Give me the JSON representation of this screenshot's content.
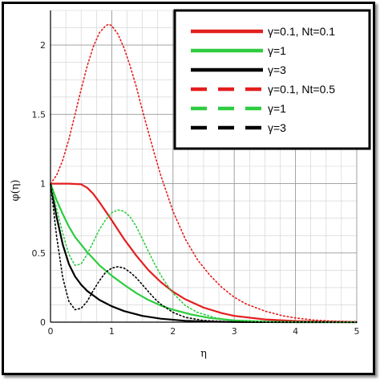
{
  "chart_data": {
    "type": "line",
    "xlabel": "η",
    "ylabel": "φ(η)",
    "xlim": [
      0,
      5
    ],
    "ylim": [
      0,
      2.25
    ],
    "x_ticks": [
      "0",
      "1",
      "2",
      "3",
      "4",
      "5"
    ],
    "y_ticks": [
      "0",
      "0.5",
      "1",
      "1.5",
      "2"
    ],
    "minor_grid": true,
    "grid": true,
    "legend_position": "top-right",
    "series": [
      {
        "name": "γ=0.1, Nt=0.1",
        "color": "#e41e1e",
        "style": "solid",
        "x": [
          0,
          0.3,
          0.5,
          0.6,
          0.7,
          0.8,
          0.9,
          1.0,
          1.2,
          1.4,
          1.6,
          1.8,
          2.0,
          2.2,
          2.5,
          2.8,
          3.0,
          3.5,
          4.0,
          4.5,
          5.0
        ],
        "y": [
          1.0,
          1.0,
          0.995,
          0.97,
          0.925,
          0.865,
          0.8,
          0.735,
          0.6,
          0.48,
          0.375,
          0.29,
          0.22,
          0.165,
          0.105,
          0.065,
          0.045,
          0.02,
          0.008,
          0.003,
          0.001
        ]
      },
      {
        "name": "γ=1",
        "color": "#2ecc40",
        "style": "solid",
        "x": [
          0,
          0.1,
          0.2,
          0.3,
          0.4,
          0.6,
          0.8,
          1.0,
          1.2,
          1.4,
          1.6,
          1.8,
          2.0,
          2.3,
          2.6,
          3.0,
          3.5,
          4.0,
          5.0
        ],
        "y": [
          1.0,
          0.88,
          0.78,
          0.69,
          0.615,
          0.505,
          0.41,
          0.335,
          0.27,
          0.21,
          0.16,
          0.12,
          0.09,
          0.055,
          0.03,
          0.012,
          0.004,
          0.001,
          0.0
        ]
      },
      {
        "name": "γ=3",
        "color": "#000000",
        "style": "solid",
        "x": [
          0,
          0.1,
          0.2,
          0.3,
          0.4,
          0.5,
          0.6,
          0.8,
          1.0,
          1.2,
          1.5,
          1.8,
          2.2,
          2.6,
          3.0,
          4.0,
          5.0
        ],
        "y": [
          1.0,
          0.76,
          0.56,
          0.42,
          0.33,
          0.27,
          0.225,
          0.16,
          0.115,
          0.08,
          0.045,
          0.025,
          0.01,
          0.004,
          0.001,
          0.0,
          0.0
        ]
      },
      {
        "name": "γ=0.1, Nt=0.5",
        "color": "#e41e1e",
        "style": "dashed",
        "x": [
          0,
          0.1,
          0.2,
          0.3,
          0.4,
          0.5,
          0.6,
          0.7,
          0.8,
          0.9,
          0.95,
          1.0,
          1.1,
          1.2,
          1.3,
          1.4,
          1.5,
          1.6,
          1.7,
          1.8,
          2.0,
          2.2,
          2.4,
          2.6,
          2.8,
          3.0,
          3.2,
          3.5,
          3.8,
          4.0,
          4.3,
          4.6,
          5.0
        ],
        "y": [
          1.0,
          1.06,
          1.17,
          1.32,
          1.5,
          1.68,
          1.85,
          1.99,
          2.09,
          2.14,
          2.15,
          2.14,
          2.08,
          1.98,
          1.85,
          1.7,
          1.53,
          1.37,
          1.21,
          1.06,
          0.8,
          0.6,
          0.45,
          0.34,
          0.25,
          0.18,
          0.13,
          0.08,
          0.045,
          0.03,
          0.015,
          0.008,
          0.003
        ]
      },
      {
        "name": "γ=1",
        "color": "#2ecc40",
        "style": "dashed",
        "x": [
          0,
          0.1,
          0.2,
          0.3,
          0.4,
          0.5,
          0.6,
          0.7,
          0.8,
          0.9,
          1.0,
          1.1,
          1.2,
          1.3,
          1.4,
          1.5,
          1.6,
          1.7,
          1.8,
          1.9,
          2.0,
          2.2,
          2.4,
          2.7,
          3.0,
          3.5,
          4.0,
          5.0
        ],
        "y": [
          1.0,
          0.82,
          0.64,
          0.49,
          0.41,
          0.42,
          0.49,
          0.58,
          0.67,
          0.74,
          0.79,
          0.81,
          0.8,
          0.76,
          0.69,
          0.6,
          0.51,
          0.42,
          0.34,
          0.27,
          0.21,
          0.12,
          0.07,
          0.03,
          0.012,
          0.003,
          0.001,
          0.0
        ]
      },
      {
        "name": "γ=3",
        "color": "#000000",
        "style": "dashed",
        "x": [
          0,
          0.1,
          0.2,
          0.3,
          0.4,
          0.5,
          0.6,
          0.7,
          0.8,
          0.9,
          1.0,
          1.1,
          1.2,
          1.3,
          1.4,
          1.5,
          1.6,
          1.7,
          1.8,
          1.9,
          2.0,
          2.2,
          2.5,
          3.0,
          3.5,
          4.0,
          5.0
        ],
        "y": [
          1.0,
          0.62,
          0.32,
          0.15,
          0.09,
          0.1,
          0.15,
          0.23,
          0.3,
          0.36,
          0.39,
          0.4,
          0.39,
          0.36,
          0.32,
          0.27,
          0.22,
          0.17,
          0.13,
          0.1,
          0.07,
          0.035,
          0.012,
          0.002,
          0.0,
          0.0,
          0.0
        ]
      }
    ]
  }
}
